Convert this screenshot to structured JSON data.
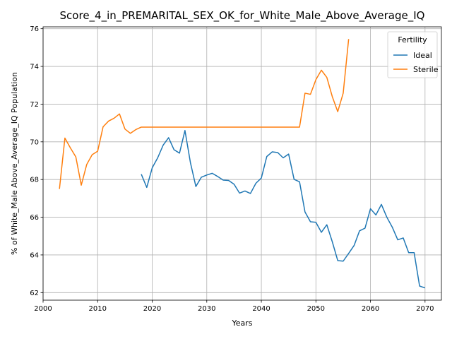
{
  "chart_data": {
    "type": "line",
    "title": "Score_4_in_PREMARITAL_SEX_OK_for_White_Male_Above_Average_IQ",
    "xlabel": "Years",
    "ylabel": "% of White_Male Above_Average_IQ Population",
    "xlim": [
      2000,
      2073
    ],
    "ylim": [
      61.6,
      76.1
    ],
    "xticks": [
      2000,
      2010,
      2020,
      2030,
      2040,
      2050,
      2060,
      2070
    ],
    "yticks": [
      62,
      64,
      66,
      68,
      70,
      72,
      74,
      76
    ],
    "grid": true,
    "legend": {
      "title": "Fertility",
      "position": "top-right"
    },
    "series": [
      {
        "name": "Ideal",
        "color": "#1f77b4",
        "x": [
          2018,
          2019,
          2020,
          2021,
          2022,
          2023,
          2024,
          2025,
          2026,
          2027,
          2028,
          2029,
          2030,
          2031,
          2032,
          2033,
          2034,
          2035,
          2036,
          2037,
          2038,
          2039,
          2040,
          2041,
          2042,
          2043,
          2044,
          2045,
          2046,
          2047,
          2048,
          2049,
          2050,
          2051,
          2052,
          2053,
          2054,
          2055,
          2056,
          2057,
          2058,
          2059,
          2060,
          2061,
          2062,
          2063,
          2064,
          2065,
          2066,
          2067,
          2068,
          2069,
          2070
        ],
        "y": [
          68.28,
          67.58,
          68.62,
          69.15,
          69.82,
          70.22,
          69.58,
          69.4,
          70.6,
          68.9,
          67.63,
          68.12,
          68.24,
          68.33,
          68.16,
          67.97,
          67.95,
          67.75,
          67.28,
          67.39,
          67.26,
          67.8,
          68.08,
          69.22,
          69.47,
          69.43,
          69.15,
          69.35,
          68.01,
          67.88,
          66.28,
          65.76,
          65.73,
          65.2,
          65.6,
          64.7,
          63.7,
          63.67,
          64.08,
          64.5,
          65.28,
          65.42,
          66.45,
          66.12,
          66.68,
          66.0,
          65.47,
          64.8,
          64.9,
          64.12,
          64.12,
          62.35,
          62.25
        ]
      },
      {
        "name": "Sterile",
        "color": "#ff7f0e",
        "x": [
          2003,
          2004,
          2005,
          2006,
          2007,
          2008,
          2009,
          2010,
          2011,
          2012,
          2013,
          2014,
          2015,
          2016,
          2017,
          2018,
          2019,
          2020,
          2030,
          2040,
          2046,
          2047,
          2048,
          2049,
          2050,
          2051,
          2052,
          2053,
          2054,
          2055,
          2056
        ],
        "y": [
          67.5,
          70.2,
          69.68,
          69.2,
          67.7,
          68.8,
          69.32,
          69.5,
          70.8,
          71.1,
          71.25,
          71.48,
          70.68,
          70.45,
          70.65,
          70.78,
          70.78,
          70.78,
          70.78,
          70.78,
          70.78,
          70.78,
          72.58,
          72.52,
          73.3,
          73.8,
          73.42,
          72.4,
          71.6,
          72.58,
          75.45
        ]
      }
    ]
  }
}
